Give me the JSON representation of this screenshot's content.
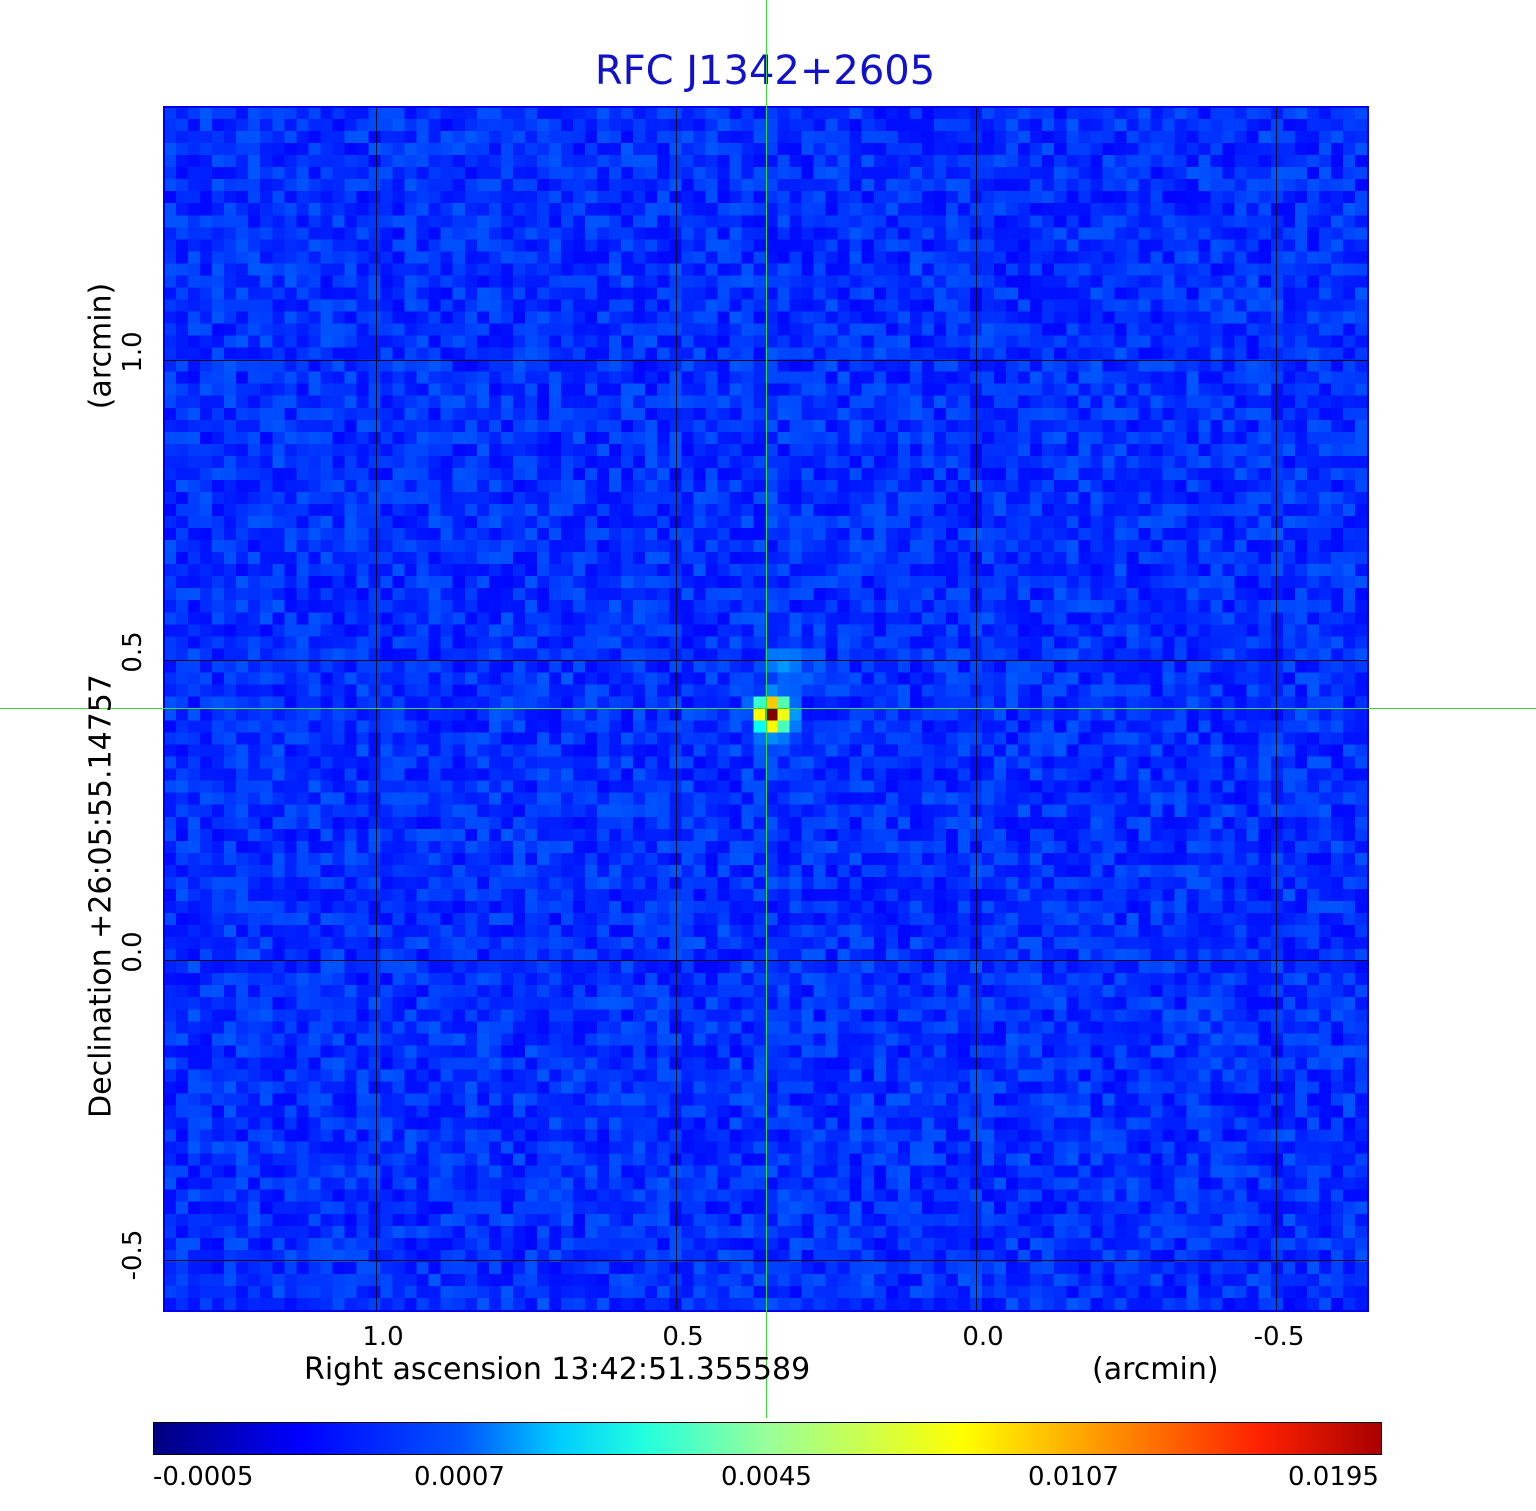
{
  "title": "RFC J1342+2605",
  "x_axis": {
    "label": "Right ascension  13:42:51.355589",
    "unit": "(arcmin)",
    "ticks": [
      "1.0",
      "0.5",
      "0.0",
      "-0.5"
    ]
  },
  "y_axis": {
    "label": "Declination  +26:05:55.14757",
    "unit": "(arcmin)",
    "ticks": [
      "1.0",
      "0.5",
      "0.0",
      "-0.5"
    ]
  },
  "colorbar": {
    "ticks": [
      "-0.0005",
      "0.0007",
      "0.0045",
      "0.0107",
      "0.0195"
    ],
    "colormap": "jet"
  },
  "image": {
    "description_colors": {
      "background": "#1560ff",
      "peak": "#cc1100"
    },
    "source": {
      "ra_offset_arcmin": 0.35,
      "dec_offset_arcmin": 0.42
    }
  }
}
